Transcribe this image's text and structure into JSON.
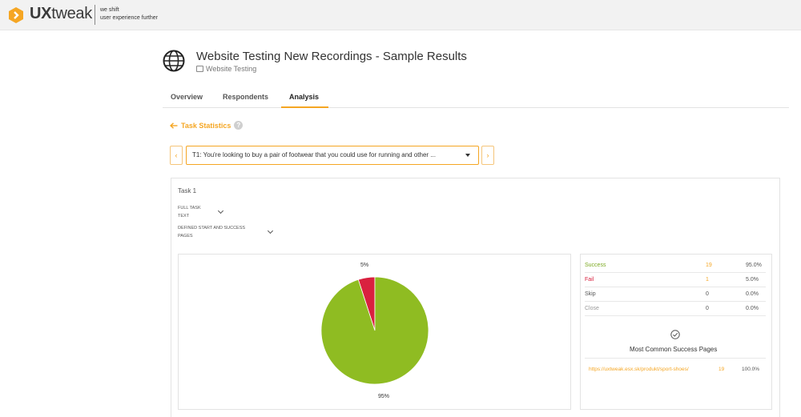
{
  "brand": {
    "name_bold": "UX",
    "name_light": "tweak",
    "tagline_line1": "we shift",
    "tagline_line2": "user experience further",
    "accent": "#f5a623"
  },
  "header": {
    "title": "Website Testing New Recordings - Sample Results",
    "subtitle": "Website Testing",
    "icon": "globe-icon"
  },
  "tabs": [
    {
      "label": "Overview",
      "active": false
    },
    {
      "label": "Respondents",
      "active": false
    },
    {
      "label": "Analysis",
      "active": true
    }
  ],
  "section": {
    "back_label": "Task Statistics",
    "help_glyph": "?"
  },
  "task_selector": {
    "prev": "‹",
    "next": "›",
    "selected": "T1: You're looking to buy a pair of footwear that you could use for running and other ..."
  },
  "task": {
    "label": "Task 1",
    "full_text_line1": "FULL TASK",
    "full_text_line2": "TEXT",
    "pages_line1": "DEFINED START AND SUCCESS",
    "pages_line2": "PAGES"
  },
  "chart_data": {
    "type": "pie",
    "slices": [
      {
        "label": "Success",
        "value": 95,
        "color": "#8fbc22"
      },
      {
        "label": "Fail",
        "value": 5,
        "color": "#d9213f"
      }
    ],
    "labels": {
      "success": "95%",
      "fail": "5%"
    }
  },
  "stats": [
    {
      "name": "Success",
      "count": "19",
      "percent": "95.0%",
      "name_color": "#7aa81e",
      "count_color": "#f5a623"
    },
    {
      "name": "Fail",
      "count": "1",
      "percent": "5.0%",
      "name_color": "#d9213f",
      "count_color": "#f5a623"
    },
    {
      "name": "Skip",
      "count": "0",
      "percent": "0.0%",
      "name_color": "#555555",
      "count_color": "#555555"
    },
    {
      "name": "Close",
      "count": "0",
      "percent": "0.0%",
      "name_color": "#999999",
      "count_color": "#555555"
    }
  ],
  "success_pages": {
    "title": "Most Common Success Pages",
    "rows": [
      {
        "url": "https://uxtweak.esx.sk/produkt/sport-shoes/",
        "count": "19",
        "percent": "100.0%"
      }
    ]
  }
}
